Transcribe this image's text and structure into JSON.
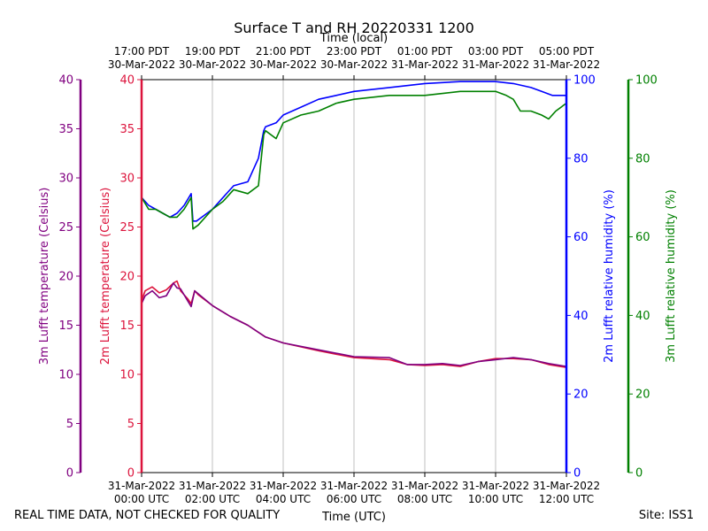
{
  "chart_data": {
    "type": "line",
    "title": "Surface T and RH 20220331 1200",
    "top_axis_label": "Time (local)",
    "bottom_axis_label": "Time (UTC)",
    "x_range_utc_hours": [
      0,
      12
    ],
    "grid": "vertical",
    "x_ticks_top": [
      {
        "line1": "17:00 PDT",
        "line2": "30-Mar-2022"
      },
      {
        "line1": "19:00 PDT",
        "line2": "30-Mar-2022"
      },
      {
        "line1": "21:00 PDT",
        "line2": "30-Mar-2022"
      },
      {
        "line1": "23:00 PDT",
        "line2": "30-Mar-2022"
      },
      {
        "line1": "01:00 PDT",
        "line2": "31-Mar-2022"
      },
      {
        "line1": "03:00 PDT",
        "line2": "31-Mar-2022"
      },
      {
        "line1": "05:00 PDT",
        "line2": "31-Mar-2022"
      }
    ],
    "x_ticks_bottom": [
      {
        "line1": "31-Mar-2022",
        "line2": "00:00 UTC"
      },
      {
        "line1": "31-Mar-2022",
        "line2": "02:00 UTC"
      },
      {
        "line1": "31-Mar-2022",
        "line2": "04:00 UTC"
      },
      {
        "line1": "31-Mar-2022",
        "line2": "06:00 UTC"
      },
      {
        "line1": "31-Mar-2022",
        "line2": "08:00 UTC"
      },
      {
        "line1": "31-Mar-2022",
        "line2": "10:00 UTC"
      },
      {
        "line1": "31-Mar-2022",
        "line2": "12:00 UTC"
      }
    ],
    "axes": {
      "t3": {
        "label": "3m Lufft temperature (Celsius)",
        "range": [
          0,
          40
        ],
        "ticks": [
          "0",
          "5",
          "10",
          "15",
          "20",
          "25",
          "30",
          "35",
          "40"
        ],
        "color": "#800080"
      },
      "t2": {
        "label": "2m Lufft temperature (Celsius)",
        "range": [
          0,
          40
        ],
        "ticks": [
          "0",
          "5",
          "10",
          "15",
          "20",
          "25",
          "30",
          "35",
          "40"
        ],
        "color": "#dc143c"
      },
      "rh2": {
        "label": "2m Lufft relative humidity (%)",
        "range": [
          0,
          100
        ],
        "ticks": [
          "0",
          "20",
          "40",
          "60",
          "80",
          "100"
        ],
        "color": "#0000ff"
      },
      "rh3": {
        "label": "3m Lufft relative humidity (%)",
        "range": [
          0,
          100
        ],
        "ticks": [
          "0",
          "20",
          "40",
          "60",
          "80",
          "100"
        ],
        "color": "#008000"
      }
    },
    "series": [
      {
        "axis": "t2",
        "color": "#dc143c",
        "x": [
          0,
          0.1,
          0.3,
          0.5,
          0.7,
          0.9,
          1.0,
          1.1,
          1.3,
          1.4,
          1.5,
          1.6,
          2.0,
          2.5,
          3.0,
          3.5,
          4.0,
          5.0,
          6.0,
          7.0,
          7.5,
          8.0,
          8.5,
          9.0,
          9.5,
          10.0,
          10.5,
          11.0,
          11.5,
          12.0
        ],
        "y": [
          17.5,
          18.5,
          18.9,
          18.3,
          18.6,
          19.3,
          19.5,
          18.5,
          17.7,
          17.2,
          18.5,
          18.1,
          17.0,
          15.9,
          15.0,
          13.8,
          13.2,
          12.4,
          11.7,
          11.5,
          11.0,
          10.9,
          11.0,
          10.8,
          11.3,
          11.6,
          11.6,
          11.5,
          11.0,
          10.7
        ]
      },
      {
        "axis": "t3",
        "color": "#800080",
        "x": [
          0,
          0.1,
          0.3,
          0.5,
          0.7,
          0.9,
          1.0,
          1.1,
          1.3,
          1.4,
          1.5,
          1.6,
          2.0,
          2.5,
          3.0,
          3.5,
          4.0,
          5.0,
          6.0,
          7.0,
          7.5,
          8.0,
          8.5,
          9.0,
          9.5,
          10.0,
          10.5,
          11.0,
          11.5,
          12.0
        ],
        "y": [
          17.2,
          18.0,
          18.5,
          17.8,
          18.0,
          19.3,
          18.8,
          18.7,
          17.5,
          16.9,
          18.5,
          18.2,
          17.0,
          15.9,
          15.0,
          13.8,
          13.2,
          12.5,
          11.8,
          11.7,
          11.0,
          11.0,
          11.1,
          10.9,
          11.3,
          11.5,
          11.7,
          11.5,
          11.1,
          10.8
        ]
      },
      {
        "axis": "rh2",
        "color": "#0000ff",
        "x": [
          0,
          0.2,
          0.4,
          0.6,
          0.8,
          1.0,
          1.2,
          1.4,
          1.45,
          1.55,
          1.7,
          2.0,
          2.3,
          2.6,
          3.0,
          3.3,
          3.45,
          3.5,
          3.8,
          4.0,
          4.5,
          5.0,
          5.5,
          6.0,
          7.0,
          8.0,
          9.0,
          9.5,
          10.0,
          10.5,
          11.0,
          11.3,
          11.6,
          11.9,
          12.0
        ],
        "y": [
          70,
          68,
          67,
          66,
          65,
          66,
          68,
          71,
          64,
          64,
          65,
          67,
          70,
          73,
          74,
          80,
          87,
          88,
          89,
          91,
          93,
          95,
          96,
          97,
          98,
          99,
          99.5,
          99.5,
          99.5,
          99,
          98,
          97,
          96,
          96,
          96
        ]
      },
      {
        "axis": "rh3",
        "color": "#008000",
        "x": [
          0,
          0.2,
          0.4,
          0.6,
          0.8,
          1.0,
          1.2,
          1.4,
          1.45,
          1.6,
          2.0,
          2.3,
          2.6,
          3.0,
          3.3,
          3.45,
          3.5,
          3.8,
          4.0,
          4.5,
          5.0,
          5.5,
          6.0,
          7.0,
          8.0,
          9.0,
          9.5,
          10.0,
          10.3,
          10.5,
          10.7,
          11.0,
          11.3,
          11.5,
          11.7,
          12.0
        ],
        "y": [
          70,
          67,
          67,
          66,
          65,
          65,
          67,
          70,
          62,
          63,
          67,
          69,
          72,
          71,
          73,
          86,
          87,
          85,
          89,
          91,
          92,
          94,
          95,
          96,
          96,
          97,
          97,
          97,
          96,
          95,
          92,
          92,
          91,
          90,
          92,
          94
        ]
      }
    ]
  },
  "footer": {
    "left": "REAL TIME DATA, NOT CHECKED FOR QUALITY",
    "right": "Site: ISS1"
  }
}
